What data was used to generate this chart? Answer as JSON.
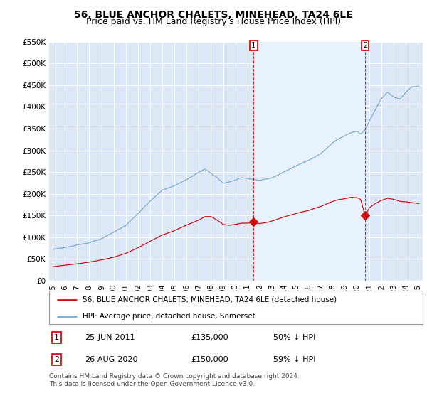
{
  "title": "56, BLUE ANCHOR CHALETS, MINEHEAD, TA24 6LE",
  "subtitle": "Price paid vs. HM Land Registry's House Price Index (HPI)",
  "title_fontsize": 10,
  "subtitle_fontsize": 9,
  "background_color": "#ffffff",
  "plot_bg_color": "#dce8f8",
  "shade_color": "#e8f2fc",
  "grid_color": "#ffffff",
  "hpi_color": "#7aadd4",
  "price_color": "#cc1111",
  "ylim": [
    0,
    550000
  ],
  "yticks": [
    0,
    50000,
    100000,
    150000,
    200000,
    250000,
    300000,
    350000,
    400000,
    450000,
    500000,
    550000
  ],
  "ytick_labels": [
    "£0",
    "£50K",
    "£100K",
    "£150K",
    "£200K",
    "£250K",
    "£300K",
    "£350K",
    "£400K",
    "£450K",
    "£500K",
    "£550K"
  ],
  "legend1_text": "56, BLUE ANCHOR CHALETS, MINEHEAD, TA24 6LE (detached house)",
  "legend2_text": "HPI: Average price, detached house, Somerset",
  "note1_label": "1",
  "note1_date": "25-JUN-2011",
  "note1_price": "£135,000",
  "note1_hpi": "50% ↓ HPI",
  "note2_label": "2",
  "note2_date": "26-AUG-2020",
  "note2_price": "£150,000",
  "note2_hpi": "59% ↓ HPI",
  "footer": "Contains HM Land Registry data © Crown copyright and database right 2024.\nThis data is licensed under the Open Government Licence v3.0.",
  "sale1_year": 2011.5,
  "sale1_price": 135000,
  "sale2_year": 2020.67,
  "sale2_price": 150000,
  "vline1_year": 2011.5,
  "vline2_year": 2020.67
}
